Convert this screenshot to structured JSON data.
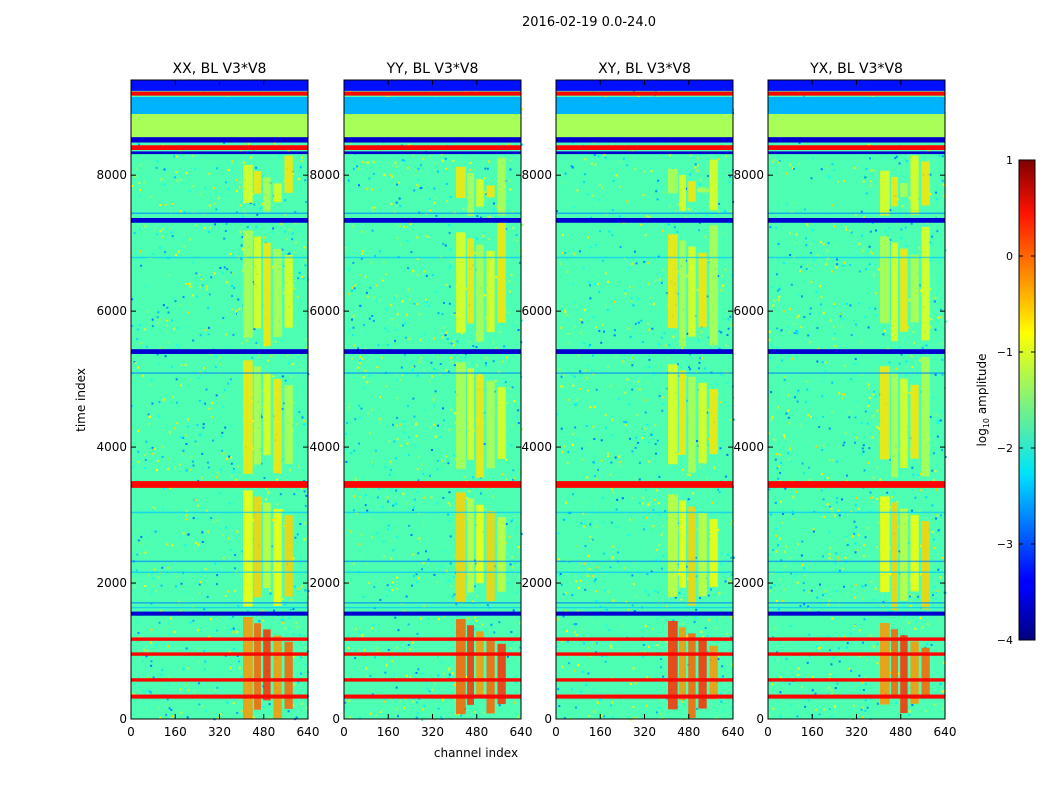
{
  "figure": {
    "suptitle": "2016-02-19 0.0-24.0"
  },
  "chart_data": {
    "type": "heatmap",
    "xlabel": "channel index",
    "ylabel": "time index",
    "xlim": [
      0,
      640
    ],
    "ylim": [
      0,
      9400
    ],
    "xticks": [
      0,
      160,
      320,
      480,
      640
    ],
    "yticks": [
      0,
      2000,
      4000,
      6000,
      8000
    ],
    "panels": [
      {
        "title": "XX, BL V3*V8",
        "pol": "XX"
      },
      {
        "title": "YY, BL V3*V8",
        "pol": "YY"
      },
      {
        "title": "XY, BL V3*V8",
        "pol": "XY"
      },
      {
        "title": "YX, BL V3*V8",
        "pol": "YX"
      }
    ],
    "colorbar": {
      "label": "log10 amplitude",
      "label_main": "log",
      "label_sub": "10",
      "label_rest": " amplitude",
      "vmin": -4,
      "vmax": 1,
      "ticks": [
        1,
        0,
        -1,
        -2,
        -3,
        -4
      ],
      "tick_labels": [
        "1",
        "0",
        "−1",
        "−2",
        "−3",
        "−4"
      ],
      "colormap": "jet"
    },
    "flagged_time_bands": [
      {
        "t0": 300,
        "t1": 360,
        "value": 0.35
      },
      {
        "t0": 550,
        "t1": 600,
        "value": 0.35
      },
      {
        "t0": 930,
        "t1": 980,
        "value": 0.35
      },
      {
        "t0": 1150,
        "t1": 1200,
        "value": 0.35
      },
      {
        "t0": 1520,
        "t1": 1580,
        "value": -3.6
      },
      {
        "t0": 3400,
        "t1": 3500,
        "value": 0.35
      },
      {
        "t0": 5370,
        "t1": 5440,
        "value": -3.6
      },
      {
        "t0": 7300,
        "t1": 7370,
        "value": -3.6
      },
      {
        "t0": 8310,
        "t1": 8350,
        "value": -3.6
      },
      {
        "t0": 8370,
        "t1": 8440,
        "value": 0.35
      },
      {
        "t0": 8480,
        "t1": 8560,
        "value": -3.6
      },
      {
        "t0": 8560,
        "t1": 8900,
        "value": -1.3
      },
      {
        "t0": 8900,
        "t1": 9150,
        "value": -2.5
      },
      {
        "t0": 9170,
        "t1": 9230,
        "value": 0.35
      },
      {
        "t0": 9240,
        "t1": 9400,
        "value": -3.3
      }
    ],
    "rfi_channel_ranges": [
      {
        "c0": 405,
        "c1": 440
      },
      {
        "c0": 445,
        "c1": 470
      },
      {
        "c0": 478,
        "c1": 505
      },
      {
        "c0": 515,
        "c1": 545
      },
      {
        "c0": 555,
        "c1": 585
      }
    ]
  }
}
